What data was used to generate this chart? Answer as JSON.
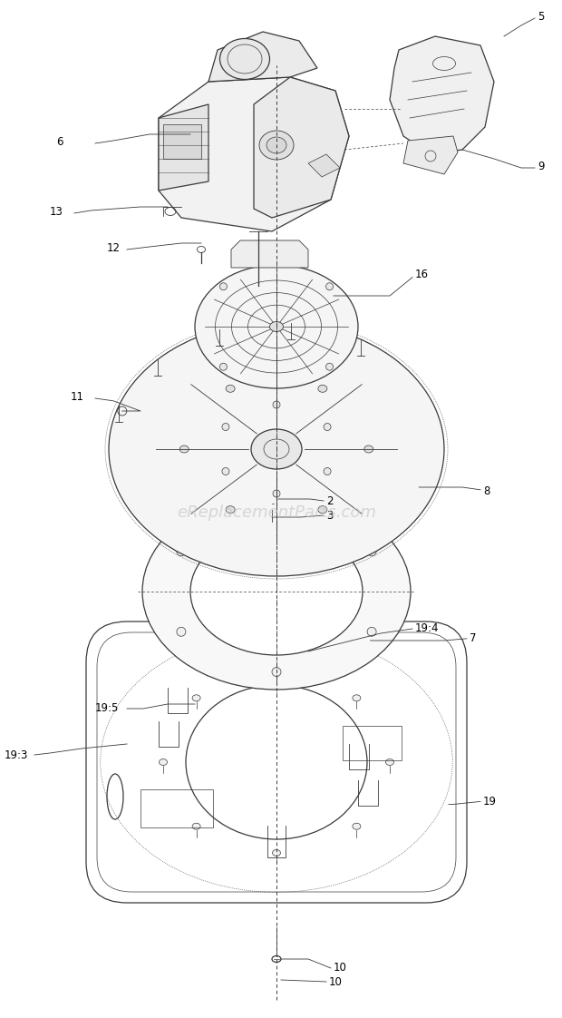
{
  "bg_color": "#ffffff",
  "line_color": "#3a3a3a",
  "label_color": "#000000",
  "watermark_text": "eReplacementParts.com",
  "watermark_color": "#c8c8c8",
  "watermark_fontsize": 13,
  "fig_width": 6.2,
  "fig_height": 11.22,
  "dpi": 100
}
